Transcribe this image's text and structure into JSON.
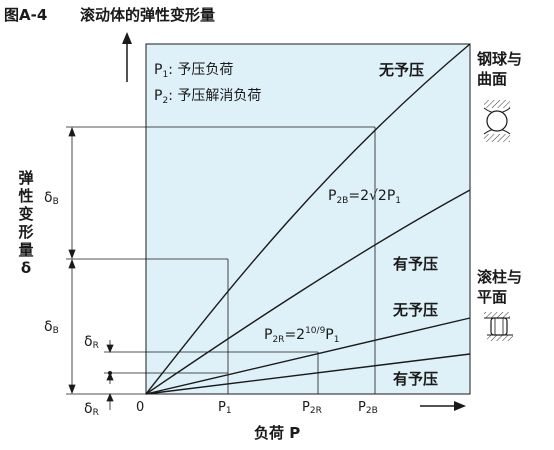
{
  "figure": {
    "id": "图A-4",
    "title": "滚动体的弹性变形量"
  },
  "legend": {
    "p1_sym": "P",
    "p1_sub": "1",
    "p1_text": ": 予压负荷",
    "p2_sym": "P",
    "p2_sub": "2",
    "p2_text": ": 予压解消负荷"
  },
  "axes": {
    "y_label": [
      "弹",
      "性",
      "变",
      "形",
      "量",
      "δ"
    ],
    "x_label": "负荷 P",
    "origin": "0",
    "x_ticks": [
      {
        "sym": "P",
        "sub": "1"
      },
      {
        "sym": "P",
        "sub": "2R"
      },
      {
        "sym": "P",
        "sub": "2B"
      }
    ],
    "delta_sym": "δ",
    "delta_B_sub": "B",
    "delta_R_sub": "R"
  },
  "curves": {
    "ball_no_preload": "无予压",
    "ball_preload": "有予压",
    "roller_no_preload": "无予压",
    "roller_preload": "有予压"
  },
  "equations": {
    "ball_lhs_sym": "P",
    "ball_lhs_sub": "2B",
    "ball_rhs": "=2√2P",
    "ball_rhs_sub": "1",
    "roller_lhs_sym": "P",
    "roller_lhs_sub": "2R",
    "roller_rhs": "=2",
    "roller_exp": "10/9",
    "roller_rhs2": "P",
    "roller_rhs2_sub": "1"
  },
  "side_labels": {
    "ball": [
      "钢球与",
      "曲面"
    ],
    "roller": [
      "滚柱与",
      "平面"
    ]
  },
  "colors": {
    "plot_bg": "#dff1f8",
    "line": "#1a1a1a"
  }
}
